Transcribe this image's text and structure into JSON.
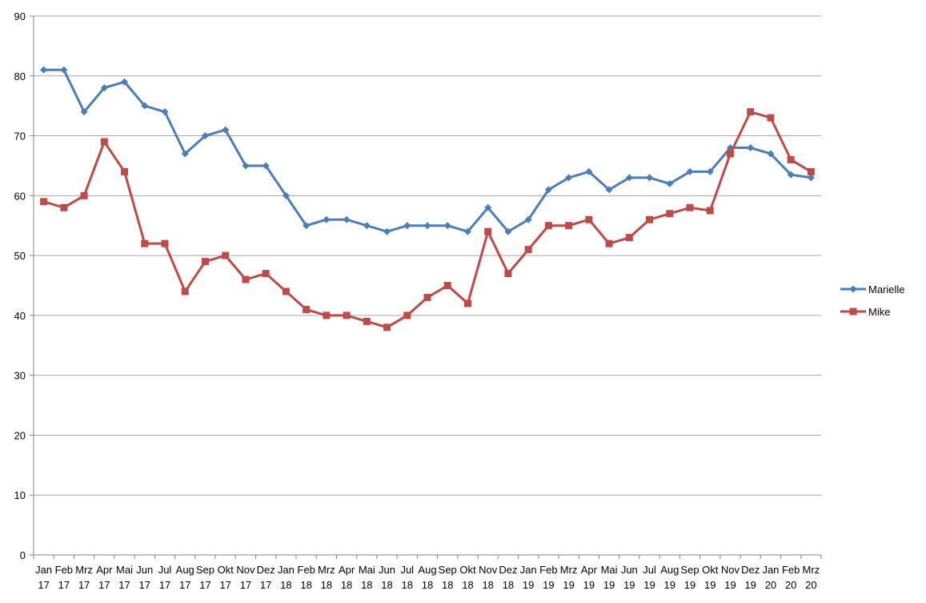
{
  "chart_data": {
    "type": "line",
    "title": "",
    "xlabel": "",
    "ylabel": "",
    "ylim": [
      0,
      90
    ],
    "yticks": [
      0,
      10,
      20,
      30,
      40,
      50,
      60,
      70,
      80,
      90
    ],
    "grid": true,
    "legend": "right",
    "categories": [
      {
        "month": "Jan",
        "year": "17"
      },
      {
        "month": "Feb",
        "year": "17"
      },
      {
        "month": "Mrz",
        "year": "17"
      },
      {
        "month": "Apr",
        "year": "17"
      },
      {
        "month": "Mai",
        "year": "17"
      },
      {
        "month": "Jun",
        "year": "17"
      },
      {
        "month": "Jul",
        "year": "17"
      },
      {
        "month": "Aug",
        "year": "17"
      },
      {
        "month": "Sep",
        "year": "17"
      },
      {
        "month": "Okt",
        "year": "17"
      },
      {
        "month": "Nov",
        "year": "17"
      },
      {
        "month": "Dez",
        "year": "17"
      },
      {
        "month": "Jan",
        "year": "18"
      },
      {
        "month": "Feb",
        "year": "18"
      },
      {
        "month": "Mrz",
        "year": "18"
      },
      {
        "month": "Apr",
        "year": "18"
      },
      {
        "month": "Mai",
        "year": "18"
      },
      {
        "month": "Jun",
        "year": "18"
      },
      {
        "month": "Jul",
        "year": "18"
      },
      {
        "month": "Aug",
        "year": "18"
      },
      {
        "month": "Sep",
        "year": "18"
      },
      {
        "month": "Okt",
        "year": "18"
      },
      {
        "month": "Nov",
        "year": "18"
      },
      {
        "month": "Dez",
        "year": "18"
      },
      {
        "month": "Jan",
        "year": "19"
      },
      {
        "month": "Feb",
        "year": "19"
      },
      {
        "month": "Mrz",
        "year": "19"
      },
      {
        "month": "Apr",
        "year": "19"
      },
      {
        "month": "Mai",
        "year": "19"
      },
      {
        "month": "Jun",
        "year": "19"
      },
      {
        "month": "Jul",
        "year": "19"
      },
      {
        "month": "Aug",
        "year": "19"
      },
      {
        "month": "Sep",
        "year": "19"
      },
      {
        "month": "Okt",
        "year": "19"
      },
      {
        "month": "Nov",
        "year": "19"
      },
      {
        "month": "Dez",
        "year": "19"
      },
      {
        "month": "Jan",
        "year": "20"
      },
      {
        "month": "Feb",
        "year": "20"
      },
      {
        "month": "Mrz",
        "year": "20"
      }
    ],
    "series": [
      {
        "name": "Marielle",
        "color": "#4a7ebb",
        "marker": "diamond",
        "values": [
          81,
          81,
          74,
          78,
          79,
          75,
          74,
          67,
          70,
          71,
          65,
          65,
          60,
          55,
          56,
          56,
          55,
          54,
          55,
          55,
          55,
          54,
          58,
          54,
          56,
          61,
          63,
          64,
          61,
          63,
          63,
          62,
          64,
          64,
          68,
          68,
          67,
          63.5,
          63
        ]
      },
      {
        "name": "Mike",
        "color": "#be4b48",
        "marker": "square",
        "values": [
          59,
          58,
          60,
          69,
          64,
          52,
          52,
          44,
          49,
          50,
          46,
          47,
          44,
          41,
          40,
          40,
          39,
          38,
          40,
          43,
          45,
          42,
          54,
          47,
          51,
          55,
          55,
          56,
          52,
          53,
          56,
          57,
          58,
          57.5,
          67,
          74,
          73,
          66,
          64
        ]
      }
    ]
  }
}
